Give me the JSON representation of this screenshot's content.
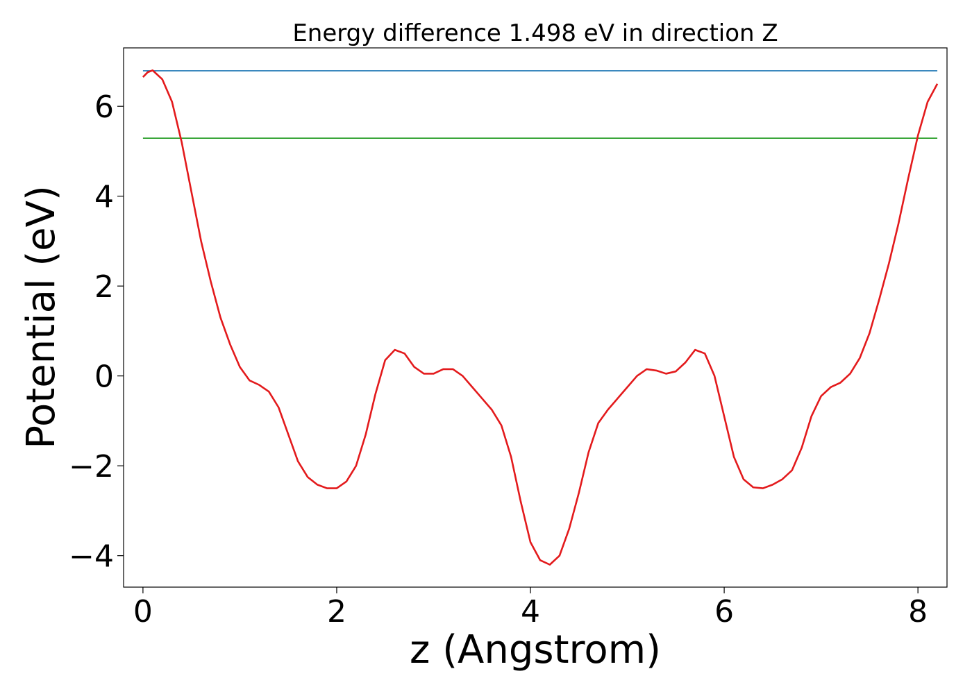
{
  "chart_data": {
    "type": "line",
    "title": "Energy difference 1.498 eV in direction Z",
    "xlabel": "z (Angstrom)",
    "ylabel": "Potential (eV)",
    "xlim": [
      -0.2,
      8.3
    ],
    "ylim": [
      -4.7,
      7.3
    ],
    "xticks": [
      0,
      2,
      4,
      6,
      8
    ],
    "yticks": [
      -4,
      -2,
      0,
      2,
      4,
      6
    ],
    "xtick_labels": [
      "0",
      "2",
      "4",
      "6",
      "8"
    ],
    "ytick_labels": [
      "−4",
      "−2",
      "0",
      "2",
      "4",
      "6"
    ],
    "grid": false,
    "series": [
      {
        "color": "#1f77b4",
        "x": [
          0,
          8.2
        ],
        "y": [
          6.79,
          6.79
        ]
      },
      {
        "color": "#2ca02c",
        "x": [
          0,
          8.2
        ],
        "y": [
          5.29,
          5.29
        ]
      },
      {
        "color": "#e31a1c",
        "x": [
          0,
          0.05,
          0.1,
          0.2,
          0.3,
          0.4,
          0.5,
          0.6,
          0.7,
          0.8,
          0.9,
          1.0,
          1.1,
          1.2,
          1.3,
          1.4,
          1.5,
          1.6,
          1.7,
          1.8,
          1.9,
          2.0,
          2.1,
          2.2,
          2.3,
          2.4,
          2.5,
          2.6,
          2.7,
          2.8,
          2.9,
          3.0,
          3.1,
          3.2,
          3.3,
          3.4,
          3.5,
          3.6,
          3.7,
          3.8,
          3.9,
          4.0,
          4.1,
          4.2,
          4.3,
          4.4,
          4.5,
          4.6,
          4.7,
          4.8,
          4.9,
          5.0,
          5.1,
          5.2,
          5.3,
          5.4,
          5.5,
          5.6,
          5.7,
          5.8,
          5.9,
          6.0,
          6.1,
          6.2,
          6.3,
          6.4,
          6.5,
          6.6,
          6.7,
          6.8,
          6.9,
          7.0,
          7.1,
          7.2,
          7.3,
          7.4,
          7.5,
          7.6,
          7.7,
          7.8,
          7.9,
          8.0,
          8.1,
          8.2
        ],
        "y": [
          6.65,
          6.76,
          6.8,
          6.6,
          6.1,
          5.2,
          4.1,
          3.0,
          2.1,
          1.3,
          0.7,
          0.2,
          -0.1,
          -0.2,
          -0.35,
          -0.7,
          -1.3,
          -1.9,
          -2.25,
          -2.42,
          -2.5,
          -2.5,
          -2.35,
          -2.0,
          -1.3,
          -0.4,
          0.35,
          0.58,
          0.5,
          0.2,
          0.05,
          0.05,
          0.15,
          0.15,
          0.0,
          -0.25,
          -0.5,
          -0.75,
          -1.1,
          -1.8,
          -2.8,
          -3.7,
          -4.1,
          -4.2,
          -4.0,
          -3.4,
          -2.6,
          -1.7,
          -1.05,
          -0.75,
          -0.5,
          -0.25,
          0.0,
          0.15,
          0.12,
          0.05,
          0.1,
          0.3,
          0.58,
          0.5,
          0.0,
          -0.9,
          -1.8,
          -2.3,
          -2.48,
          -2.5,
          -2.42,
          -2.3,
          -2.1,
          -1.6,
          -0.9,
          -0.45,
          -0.25,
          -0.15,
          0.05,
          0.4,
          0.95,
          1.7,
          2.5,
          3.4,
          4.4,
          5.35,
          6.1,
          6.5
        ]
      }
    ]
  }
}
